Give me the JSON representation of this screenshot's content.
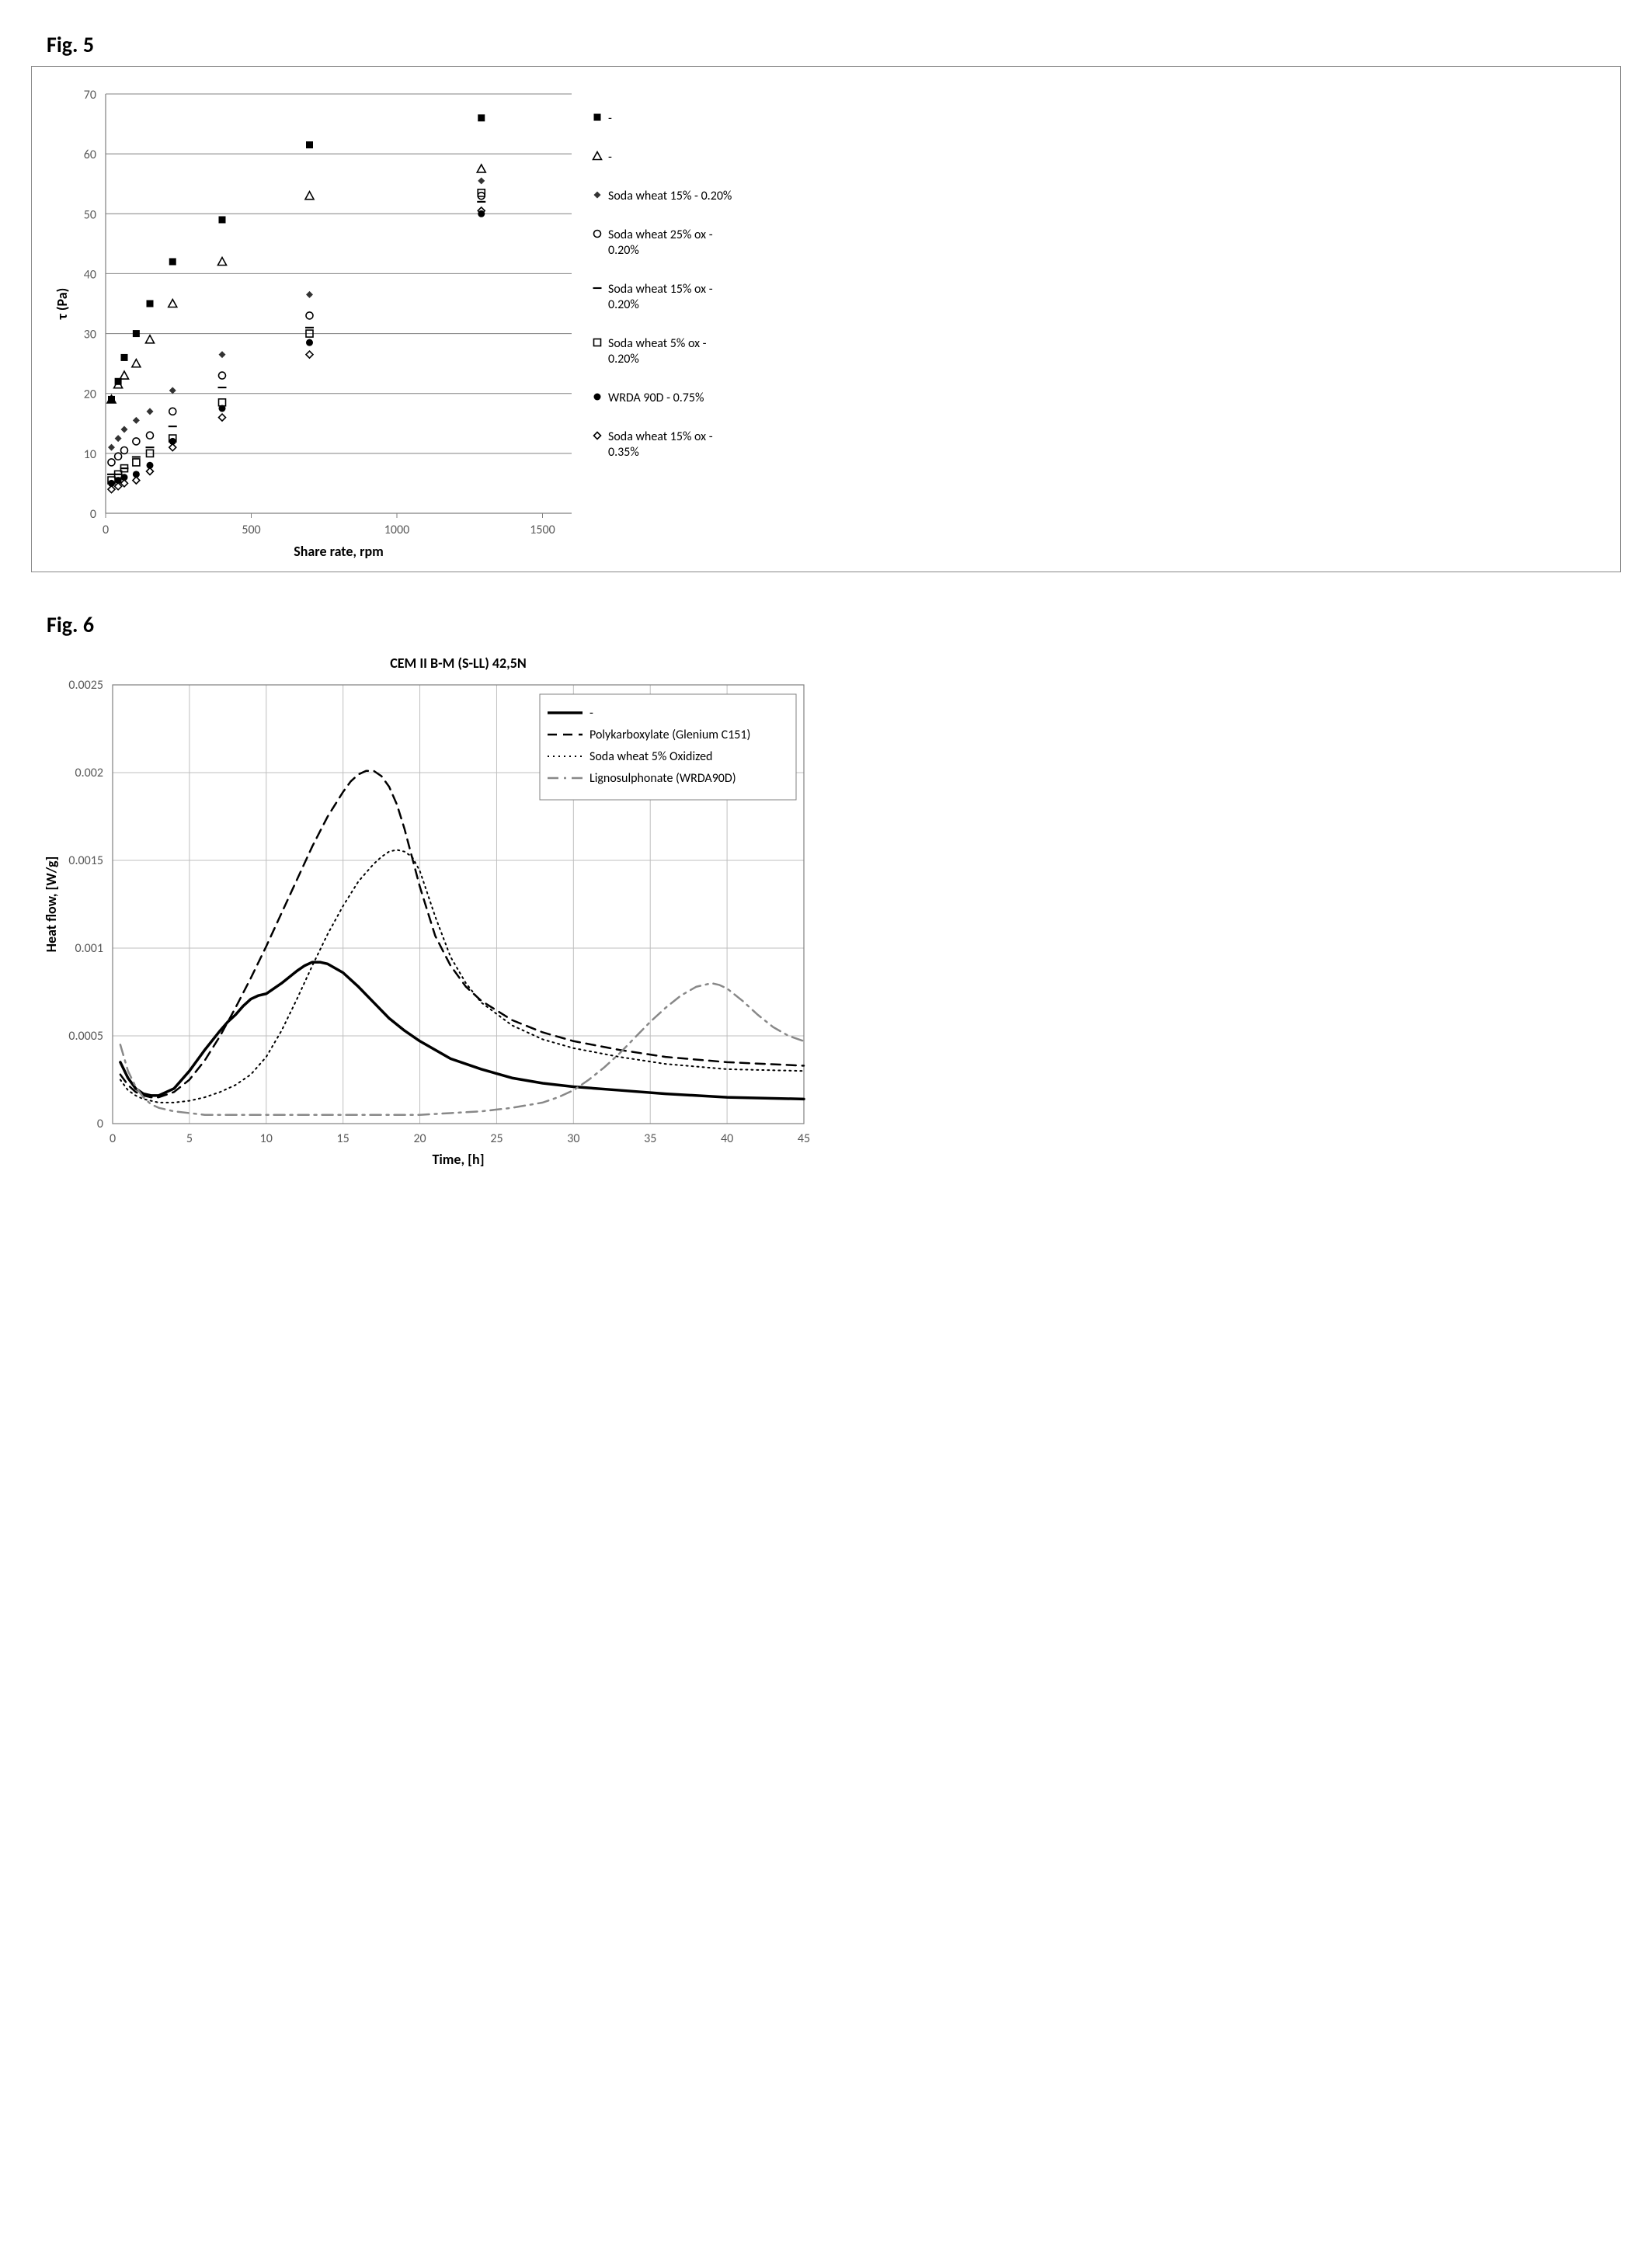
{
  "fig5": {
    "label": "Fig. 5",
    "type": "scatter",
    "xlabel": "Share rate,  rpm",
    "ylabel": "τ (Pa)",
    "xlabel_fontsize": 18,
    "ylabel_fontsize": 18,
    "tick_fontsize": 16,
    "legend_fontsize": 16,
    "xlim": [
      0,
      1600
    ],
    "ylim": [
      0,
      70
    ],
    "xticks": [
      0,
      500,
      1000,
      1500
    ],
    "yticks": [
      0,
      10,
      20,
      30,
      40,
      50,
      60,
      70
    ],
    "grid_color": "#808080",
    "grid_width": 1,
    "axis_color": "#808080",
    "background_color": "#ffffff",
    "marker_size": 9,
    "marker_stroke": 1.6,
    "series": [
      {
        "name": "-",
        "marker": "square-filled",
        "color": "#000000",
        "points": [
          [
            20,
            19
          ],
          [
            43,
            22
          ],
          [
            64,
            26
          ],
          [
            105,
            30
          ],
          [
            152,
            35
          ],
          [
            230,
            42
          ],
          [
            400,
            49
          ],
          [
            700,
            61.5
          ],
          [
            1290,
            66
          ]
        ]
      },
      {
        "name": "-",
        "marker": "triangle-open",
        "color": "#000000",
        "points": [
          [
            20,
            19
          ],
          [
            43,
            21.5
          ],
          [
            64,
            23
          ],
          [
            105,
            25
          ],
          [
            152,
            29
          ],
          [
            230,
            35
          ],
          [
            400,
            42
          ],
          [
            700,
            53
          ],
          [
            1290,
            57.5
          ]
        ]
      },
      {
        "name": "Soda wheat 15% - 0.20%",
        "marker": "diamond-filled",
        "color": "#333333",
        "points": [
          [
            20,
            11
          ],
          [
            43,
            12.5
          ],
          [
            64,
            14
          ],
          [
            105,
            15.5
          ],
          [
            152,
            17
          ],
          [
            230,
            20.5
          ],
          [
            400,
            26.5
          ],
          [
            700,
            36.5
          ],
          [
            1290,
            55.5
          ]
        ]
      },
      {
        "name": "Soda wheat 25% ox - 0.20%",
        "marker": "circle-open",
        "color": "#000000",
        "points": [
          [
            20,
            8.5
          ],
          [
            43,
            9.5
          ],
          [
            64,
            10.5
          ],
          [
            105,
            12
          ],
          [
            152,
            13
          ],
          [
            230,
            17
          ],
          [
            400,
            23
          ],
          [
            700,
            33
          ],
          [
            1290,
            53
          ]
        ]
      },
      {
        "name": "Soda wheat 15% ox - 0.20%",
        "marker": "dash",
        "color": "#000000",
        "points": [
          [
            20,
            6.5
          ],
          [
            43,
            6.5
          ],
          [
            64,
            7.5
          ],
          [
            105,
            9.4
          ],
          [
            152,
            11
          ],
          [
            230,
            14.5
          ],
          [
            400,
            21
          ],
          [
            700,
            31
          ],
          [
            1290,
            52
          ]
        ]
      },
      {
        "name": "Soda wheat 5% ox - 0.20%",
        "marker": "square-open",
        "color": "#000000",
        "points": [
          [
            20,
            5.5
          ],
          [
            43,
            6.5
          ],
          [
            64,
            7.5
          ],
          [
            105,
            8.5
          ],
          [
            152,
            10
          ],
          [
            230,
            12.5
          ],
          [
            400,
            18.5
          ],
          [
            700,
            30
          ],
          [
            1290,
            53.5
          ]
        ]
      },
      {
        "name": "WRDA 90D - 0.75%",
        "marker": "circle-filled",
        "color": "#000000",
        "points": [
          [
            20,
            5
          ],
          [
            43,
            5.5
          ],
          [
            64,
            6
          ],
          [
            105,
            6.5
          ],
          [
            152,
            8
          ],
          [
            230,
            12
          ],
          [
            400,
            17.5
          ],
          [
            700,
            28.5
          ],
          [
            1290,
            50
          ]
        ]
      },
      {
        "name": "Soda wheat 15% ox - 0.35%",
        "marker": "diamond-open",
        "color": "#000000",
        "points": [
          [
            20,
            4
          ],
          [
            43,
            4.5
          ],
          [
            64,
            5
          ],
          [
            105,
            5.5
          ],
          [
            152,
            7
          ],
          [
            230,
            11
          ],
          [
            400,
            16
          ],
          [
            700,
            26.5
          ],
          [
            1290,
            50.5
          ]
        ]
      }
    ]
  },
  "fig6": {
    "label": "Fig. 6",
    "type": "line",
    "title": "CEM II B-M (S-LL) 42,5N",
    "title_fontsize": 18,
    "title_weight": "bold",
    "xlabel": "Time, [h]",
    "ylabel": "Heat flow, [W/g]",
    "xlabel_fontsize": 18,
    "ylabel_fontsize": 18,
    "tick_fontsize": 16,
    "legend_fontsize": 16,
    "xlim": [
      0,
      45
    ],
    "ylim": [
      0,
      0.0025
    ],
    "xticks": [
      0,
      5,
      10,
      15,
      20,
      25,
      30,
      35,
      40,
      45
    ],
    "yticks": [
      0,
      0.0005,
      0.001,
      0.0015,
      0.002,
      0.0025
    ],
    "grid_color": "#bfbfbf",
    "grid_width": 1,
    "axis_color": "#808080",
    "background_color": "#ffffff",
    "legend_border_color": "#808080",
    "series": [
      {
        "name": "-",
        "style": "solid",
        "color": "#000000",
        "width": 3.5,
        "points": [
          [
            0.5,
            0.00035
          ],
          [
            1,
            0.00026
          ],
          [
            1.5,
            0.0002
          ],
          [
            2,
            0.00017
          ],
          [
            2.5,
            0.00016
          ],
          [
            3,
            0.00016
          ],
          [
            4,
            0.0002
          ],
          [
            5,
            0.0003
          ],
          [
            6,
            0.00042
          ],
          [
            7,
            0.00053
          ],
          [
            7.5,
            0.00058
          ],
          [
            8,
            0.00062
          ],
          [
            8.5,
            0.00067
          ],
          [
            9,
            0.00071
          ],
          [
            9.5,
            0.00073
          ],
          [
            10,
            0.00074
          ],
          [
            11,
            0.0008
          ],
          [
            12,
            0.00087
          ],
          [
            12.5,
            0.0009
          ],
          [
            13,
            0.00092
          ],
          [
            13.5,
            0.00092
          ],
          [
            14,
            0.00091
          ],
          [
            15,
            0.00086
          ],
          [
            16,
            0.00078
          ],
          [
            17,
            0.00069
          ],
          [
            18,
            0.0006
          ],
          [
            19,
            0.00053
          ],
          [
            20,
            0.00047
          ],
          [
            22,
            0.00037
          ],
          [
            24,
            0.00031
          ],
          [
            26,
            0.00026
          ],
          [
            28,
            0.00023
          ],
          [
            30,
            0.00021
          ],
          [
            33,
            0.00019
          ],
          [
            36,
            0.00017
          ],
          [
            40,
            0.00015
          ],
          [
            45,
            0.00014
          ]
        ]
      },
      {
        "name": "Polykarboxylate (Glenium C151)",
        "style": "dashed",
        "color": "#000000",
        "width": 2.5,
        "points": [
          [
            0.5,
            0.00028
          ],
          [
            1,
            0.00022
          ],
          [
            1.5,
            0.00018
          ],
          [
            2,
            0.00016
          ],
          [
            2.5,
            0.00015
          ],
          [
            3,
            0.00015
          ],
          [
            4,
            0.00018
          ],
          [
            5,
            0.00025
          ],
          [
            6,
            0.00036
          ],
          [
            7,
            0.0005
          ],
          [
            8,
            0.00066
          ],
          [
            9,
            0.00083
          ],
          [
            10,
            0.00101
          ],
          [
            11,
            0.0012
          ],
          [
            12,
            0.00139
          ],
          [
            13,
            0.00158
          ],
          [
            14,
            0.00175
          ],
          [
            15,
            0.00189
          ],
          [
            15.5,
            0.00195
          ],
          [
            16,
            0.00199
          ],
          [
            16.5,
            0.00201
          ],
          [
            17,
            0.00201
          ],
          [
            17.5,
            0.00198
          ],
          [
            18,
            0.00192
          ],
          [
            18.5,
            0.00182
          ],
          [
            19,
            0.00168
          ],
          [
            20,
            0.00135
          ],
          [
            21,
            0.00107
          ],
          [
            22,
            0.0009
          ],
          [
            23,
            0.00078
          ],
          [
            24,
            0.0007
          ],
          [
            26,
            0.00059
          ],
          [
            28,
            0.00052
          ],
          [
            30,
            0.00047
          ],
          [
            33,
            0.00042
          ],
          [
            36,
            0.00038
          ],
          [
            40,
            0.00035
          ],
          [
            45,
            0.00033
          ]
        ]
      },
      {
        "name": "Soda wheat 5% Oxidized",
        "style": "dotted",
        "color": "#000000",
        "width": 2.0,
        "points": [
          [
            0.5,
            0.00025
          ],
          [
            1,
            0.00019
          ],
          [
            1.5,
            0.00016
          ],
          [
            2,
            0.00014
          ],
          [
            3,
            0.00012
          ],
          [
            4,
            0.00012
          ],
          [
            5,
            0.00013
          ],
          [
            6,
            0.00015
          ],
          [
            7,
            0.00018
          ],
          [
            8,
            0.00022
          ],
          [
            9,
            0.00028
          ],
          [
            10,
            0.00038
          ],
          [
            11,
            0.00053
          ],
          [
            12,
            0.00071
          ],
          [
            13,
            0.0009
          ],
          [
            14,
            0.00108
          ],
          [
            15,
            0.00124
          ],
          [
            16,
            0.00138
          ],
          [
            17,
            0.00148
          ],
          [
            17.5,
            0.00152
          ],
          [
            18,
            0.00155
          ],
          [
            18.5,
            0.00156
          ],
          [
            19,
            0.00155
          ],
          [
            19.5,
            0.00152
          ],
          [
            20,
            0.00144
          ],
          [
            21,
            0.00118
          ],
          [
            22,
            0.00095
          ],
          [
            23,
            0.0008
          ],
          [
            24,
            0.00069
          ],
          [
            26,
            0.00056
          ],
          [
            28,
            0.00048
          ],
          [
            30,
            0.00043
          ],
          [
            33,
            0.00038
          ],
          [
            36,
            0.00034
          ],
          [
            40,
            0.00031
          ],
          [
            45,
            0.0003
          ]
        ]
      },
      {
        "name": "Lignosulphonate (WRDA90D)",
        "style": "dashdot",
        "color": "#888888",
        "width": 2.5,
        "points": [
          [
            0.5,
            0.00045
          ],
          [
            1,
            0.0003
          ],
          [
            1.5,
            0.00021
          ],
          [
            2,
            0.00015
          ],
          [
            2.5,
            0.00011
          ],
          [
            3,
            9e-05
          ],
          [
            4,
            7e-05
          ],
          [
            6,
            5e-05
          ],
          [
            8,
            5e-05
          ],
          [
            10,
            5e-05
          ],
          [
            12,
            5e-05
          ],
          [
            14,
            5e-05
          ],
          [
            16,
            5e-05
          ],
          [
            18,
            5e-05
          ],
          [
            20,
            5e-05
          ],
          [
            22,
            6e-05
          ],
          [
            24,
            7e-05
          ],
          [
            26,
            9e-05
          ],
          [
            28,
            0.00012
          ],
          [
            29,
            0.00015
          ],
          [
            30,
            0.00019
          ],
          [
            31,
            0.00025
          ],
          [
            32,
            0.00032
          ],
          [
            33,
            0.0004
          ],
          [
            34,
            0.00049
          ],
          [
            35,
            0.00058
          ],
          [
            36,
            0.00066
          ],
          [
            37,
            0.00073
          ],
          [
            38,
            0.00078
          ],
          [
            38.5,
            0.00079
          ],
          [
            39,
            0.0008
          ],
          [
            39.5,
            0.00079
          ],
          [
            40,
            0.00077
          ],
          [
            41,
            0.0007
          ],
          [
            42,
            0.00062
          ],
          [
            43,
            0.00055
          ],
          [
            44,
            0.0005
          ],
          [
            45,
            0.00047
          ]
        ]
      }
    ]
  }
}
